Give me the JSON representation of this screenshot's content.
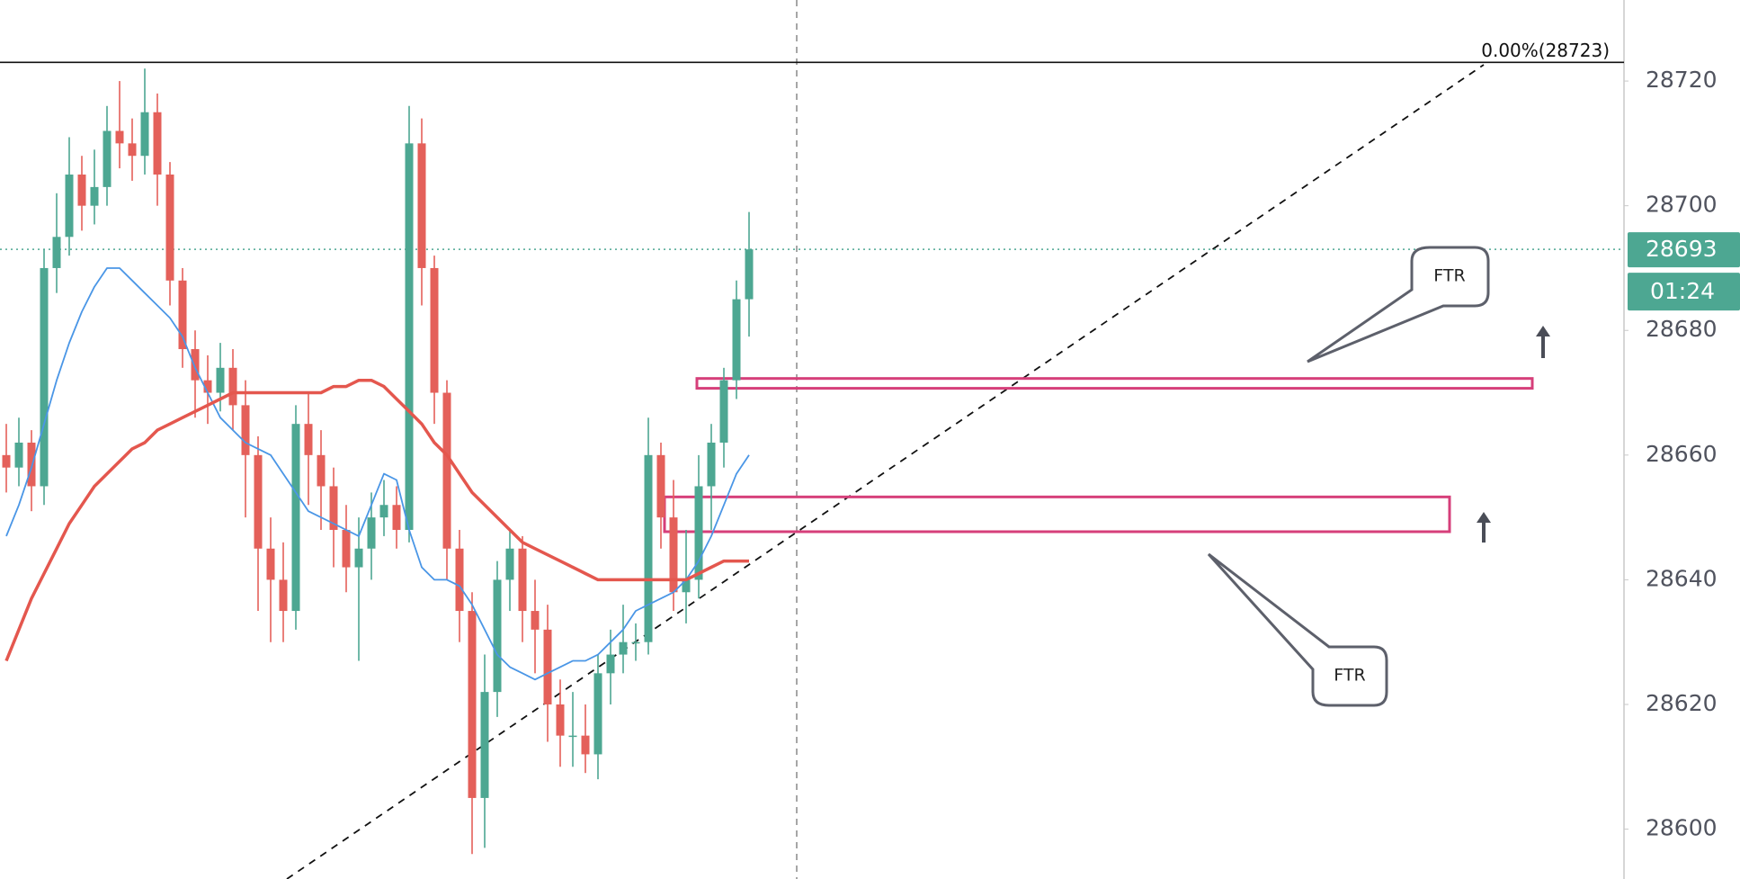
{
  "chart_data": {
    "type": "candlestick",
    "ylim": [
      28592,
      28733
    ],
    "yticks": [
      28600,
      28620,
      28640,
      28660,
      28680,
      28700,
      28720
    ],
    "open": [
      28660,
      28658,
      28662,
      28655,
      28690,
      28695,
      28705,
      28700,
      28703,
      28712,
      28710,
      28708,
      28715,
      28705,
      28688,
      28677,
      28672,
      28670,
      28674,
      28668,
      28660,
      28645,
      28640,
      28635,
      28665,
      28660,
      28655,
      28648,
      28642,
      28645,
      28650,
      28652,
      28648,
      28710,
      28690,
      28670,
      28645,
      28635,
      28605,
      28622,
      28640,
      28645,
      28635,
      28632,
      28620,
      28615,
      28615,
      28612,
      28625,
      28628,
      28630,
      28630,
      28660,
      28650,
      28638,
      28640,
      28655,
      28662,
      28672,
      28685
    ],
    "high": [
      28665,
      28666,
      28664,
      28693,
      28702,
      28711,
      28708,
      28709,
      28716,
      28720,
      28714,
      28722,
      28718,
      28707,
      28690,
      28680,
      28676,
      28678,
      28677,
      28672,
      28663,
      28650,
      28646,
      28668,
      28670,
      28664,
      28658,
      28652,
      28650,
      28654,
      28656,
      28655,
      28716,
      28714,
      28692,
      28672,
      28648,
      28638,
      28628,
      28643,
      28648,
      28647,
      28640,
      28636,
      28624,
      28622,
      28620,
      28628,
      28632,
      28636,
      28633,
      28666,
      28662,
      28656,
      28648,
      28660,
      28665,
      28674,
      28688,
      28699
    ],
    "low": [
      28654,
      28655,
      28651,
      28652,
      28686,
      28692,
      28696,
      28697,
      28700,
      28706,
      28704,
      28705,
      28700,
      28684,
      28674,
      28666,
      28665,
      28667,
      28664,
      28650,
      28635,
      28630,
      28630,
      28632,
      28652,
      28648,
      28642,
      28638,
      28627,
      28640,
      28647,
      28645,
      28646,
      28684,
      28665,
      28640,
      28630,
      28596,
      28597,
      28618,
      28635,
      28630,
      28625,
      28614,
      28610,
      28610,
      28609,
      28608,
      28620,
      28625,
      28627,
      28628,
      28645,
      28635,
      28633,
      28637,
      28648,
      28658,
      28669,
      28679
    ],
    "close": [
      28658,
      28662,
      28655,
      28690,
      28695,
      28705,
      28700,
      28703,
      28712,
      28710,
      28708,
      28715,
      28705,
      28688,
      28677,
      28672,
      28670,
      28674,
      28668,
      28660,
      28645,
      28640,
      28635,
      28665,
      28660,
      28655,
      28648,
      28642,
      28645,
      28650,
      28652,
      28648,
      28710,
      28690,
      28670,
      28645,
      28635,
      28605,
      28622,
      28640,
      28645,
      28635,
      28632,
      28620,
      28615,
      28615,
      28612,
      28625,
      28628,
      28630,
      28630,
      28660,
      28650,
      28638,
      28640,
      28655,
      28662,
      28672,
      28685,
      28693
    ],
    "up_color": "#4da792",
    "down_color": "#e4605a",
    "series": [
      {
        "color": "#4a96e6",
        "values": [
          28647,
          28652,
          28658,
          28665,
          28672,
          28678,
          28683,
          28687,
          28690,
          28690,
          28688,
          28686,
          28684,
          28682,
          28679,
          28674,
          28670,
          28666,
          28664,
          28662,
          28661,
          28660,
          28657,
          28654,
          28651,
          28650,
          28649,
          28648,
          28647,
          28652,
          28657,
          28656,
          28648,
          28642,
          28640,
          28640,
          28639,
          28636,
          28632,
          28628,
          28626,
          28625,
          28624,
          28625,
          28626,
          28627,
          28627,
          28628,
          28630,
          28632,
          28635,
          28636,
          28637,
          28638,
          28640,
          28643,
          28647,
          28652,
          28657,
          28660
        ]
      },
      {
        "color": "#e4574e",
        "values": [
          28627,
          28632,
          28637,
          28641,
          28645,
          28649,
          28652,
          28655,
          28657,
          28659,
          28661,
          28662,
          28664,
          28665,
          28666,
          28667,
          28668,
          28669,
          28670,
          28670,
          28670,
          28670,
          28670,
          28670,
          28670,
          28670,
          28671,
          28671,
          28672,
          28672,
          28671,
          28669,
          28667,
          28665,
          28662,
          28660,
          28657,
          28654,
          28652,
          28650,
          28648,
          28646,
          28645,
          28644,
          28643,
          28642,
          28641,
          28640,
          28640,
          28640,
          28640,
          28640,
          28640,
          28640,
          28640,
          28641,
          28642,
          28643,
          28643,
          28643
        ]
      }
    ],
    "zones": [
      {
        "low": 28671,
        "high": 28672,
        "color": "#d63f7a"
      },
      {
        "low": 28648,
        "high": 28653,
        "color": "#d63f7a"
      }
    ],
    "fib_level": 28723,
    "fib_label": "0.00%(28723)",
    "last_price": 28693,
    "countdown": "01:24",
    "callouts": [
      "FTR",
      "FTR"
    ]
  }
}
